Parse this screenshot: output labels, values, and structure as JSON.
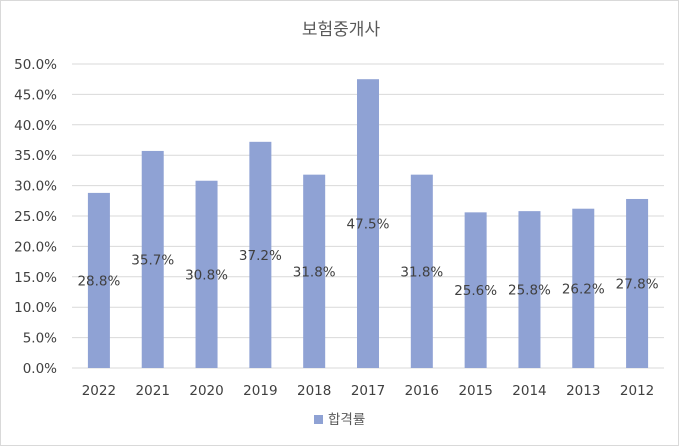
{
  "chart_data": {
    "type": "bar",
    "title": "보험중개사",
    "categories": [
      "2022",
      "2021",
      "2020",
      "2019",
      "2018",
      "2017",
      "2016",
      "2015",
      "2014",
      "2013",
      "2012"
    ],
    "series": [
      {
        "name": "합격률",
        "values": [
          28.8,
          35.7,
          30.8,
          37.2,
          31.8,
          47.5,
          31.8,
          25.6,
          25.8,
          26.2,
          27.8
        ],
        "labels": [
          "28.8%",
          "35.7%",
          "30.8%",
          "37.2%",
          "31.8%",
          "47.5%",
          "31.8%",
          "25.6%",
          "25.8%",
          "26.2%",
          "27.8%"
        ],
        "color": "#8fa2d4"
      }
    ],
    "ylim": [
      0,
      50
    ],
    "yticks": [
      "0.0%",
      "5.0%",
      "10.0%",
      "15.0%",
      "20.0%",
      "25.0%",
      "30.0%",
      "35.0%",
      "40.0%",
      "45.0%",
      "50.0%"
    ],
    "xlabel": "",
    "ylabel": "",
    "grid": true,
    "legend_position": "bottom",
    "gridline_color": "#d9d9d9"
  }
}
